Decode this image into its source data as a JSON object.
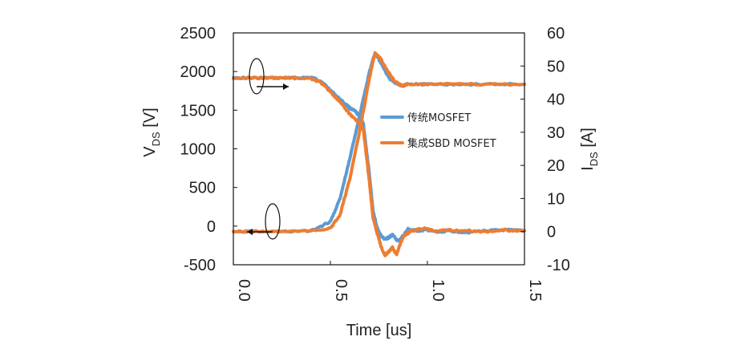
{
  "chart_data": {
    "type": "line",
    "xlabel": "Time [us]",
    "ylabel_left": {
      "main": "V",
      "sub": "DS",
      "unit": " [V]"
    },
    "ylabel_right": {
      "main": "I",
      "sub": "DS",
      "unit": " [A]"
    },
    "xlim": [
      0,
      1.5
    ],
    "ylim_left": [
      -500,
      2500
    ],
    "ylim_right": [
      -10,
      60
    ],
    "x_ticks": [
      "0.0",
      "0.5",
      "1.0",
      "1.5"
    ],
    "y_left_ticks": [
      "2500",
      "2000",
      "1500",
      "1000",
      "500",
      "0",
      "-500"
    ],
    "y_right_ticks": [
      "60",
      "50",
      "40",
      "30",
      "20",
      "10",
      "0",
      "-10"
    ],
    "legend_position": "center-right",
    "grid": false,
    "colors": {
      "conventional": "#5b9bd5",
      "integrated": "#ed7d31"
    },
    "series": [
      {
        "name": "传统MOSFET",
        "color_key": "conventional",
        "quantity": "VDS",
        "axis": "left",
        "points": [
          [
            0,
            1920
          ],
          [
            0.1,
            1915
          ],
          [
            0.2,
            1918
          ],
          [
            0.3,
            1915
          ],
          [
            0.4,
            1925
          ],
          [
            0.45,
            1880
          ],
          [
            0.5,
            1760
          ],
          [
            0.55,
            1640
          ],
          [
            0.6,
            1530
          ],
          [
            0.63,
            1480
          ],
          [
            0.65,
            1420
          ],
          [
            0.67,
            1320
          ],
          [
            0.68,
            1100
          ],
          [
            0.7,
            700
          ],
          [
            0.72,
            200
          ],
          [
            0.74,
            -20
          ],
          [
            0.76,
            -120
          ],
          [
            0.78,
            -170
          ],
          [
            0.8,
            -150
          ],
          [
            0.82,
            -110
          ],
          [
            0.85,
            -200
          ],
          [
            0.88,
            -110
          ],
          [
            0.9,
            -40
          ],
          [
            0.95,
            -60
          ],
          [
            1.0,
            -50
          ],
          [
            1.05,
            -80
          ],
          [
            1.1,
            -60
          ],
          [
            1.2,
            -80
          ],
          [
            1.3,
            -60
          ],
          [
            1.4,
            -50
          ],
          [
            1.5,
            -60
          ]
        ]
      },
      {
        "name": "传统MOSFET",
        "color_key": "conventional",
        "quantity": "IDS",
        "axis": "right",
        "points": [
          [
            0,
            0
          ],
          [
            0.2,
            0
          ],
          [
            0.4,
            0.2
          ],
          [
            0.5,
            3
          ],
          [
            0.55,
            10
          ],
          [
            0.6,
            22
          ],
          [
            0.65,
            35
          ],
          [
            0.7,
            48
          ],
          [
            0.73,
            54
          ],
          [
            0.76,
            51
          ],
          [
            0.8,
            46.5
          ],
          [
            0.83,
            45
          ],
          [
            0.87,
            44
          ],
          [
            0.9,
            44.5
          ],
          [
            1.0,
            44.5
          ],
          [
            1.2,
            44.5
          ],
          [
            1.5,
            44.5
          ]
        ]
      },
      {
        "name": "集成SBD MOSFET",
        "color_key": "integrated",
        "quantity": "VDS",
        "axis": "left",
        "points": [
          [
            0,
            1910
          ],
          [
            0.1,
            1920
          ],
          [
            0.2,
            1915
          ],
          [
            0.3,
            1920
          ],
          [
            0.4,
            1910
          ],
          [
            0.45,
            1860
          ],
          [
            0.5,
            1740
          ],
          [
            0.55,
            1600
          ],
          [
            0.6,
            1450
          ],
          [
            0.63,
            1380
          ],
          [
            0.65,
            1320
          ],
          [
            0.67,
            1250
          ],
          [
            0.7,
            600
          ],
          [
            0.72,
            100
          ],
          [
            0.74,
            -80
          ],
          [
            0.76,
            -250
          ],
          [
            0.78,
            -380
          ],
          [
            0.8,
            -330
          ],
          [
            0.82,
            -280
          ],
          [
            0.84,
            -370
          ],
          [
            0.86,
            -230
          ],
          [
            0.88,
            -120
          ],
          [
            0.92,
            -60
          ],
          [
            0.98,
            -30
          ],
          [
            1.05,
            -70
          ],
          [
            1.1,
            -50
          ],
          [
            1.2,
            -60
          ],
          [
            1.3,
            -70
          ],
          [
            1.4,
            -50
          ],
          [
            1.5,
            -60
          ]
        ]
      },
      {
        "name": "集成SBD MOSFET",
        "color_key": "integrated",
        "quantity": "IDS",
        "axis": "right",
        "points": [
          [
            0,
            0
          ],
          [
            0.2,
            0
          ],
          [
            0.4,
            0.2
          ],
          [
            0.5,
            1
          ],
          [
            0.55,
            5
          ],
          [
            0.6,
            16
          ],
          [
            0.65,
            30
          ],
          [
            0.7,
            46
          ],
          [
            0.73,
            54
          ],
          [
            0.76,
            52
          ],
          [
            0.8,
            48
          ],
          [
            0.83,
            45.5
          ],
          [
            0.87,
            44
          ],
          [
            0.9,
            44.5
          ],
          [
            1.0,
            44.5
          ],
          [
            1.2,
            44.5
          ],
          [
            1.5,
            44.5
          ]
        ]
      }
    ],
    "legend": [
      {
        "label": "传统MOSFET",
        "color_key": "conventional"
      },
      {
        "label": "集成SBD MOSFET",
        "color_key": "integrated"
      }
    ]
  }
}
